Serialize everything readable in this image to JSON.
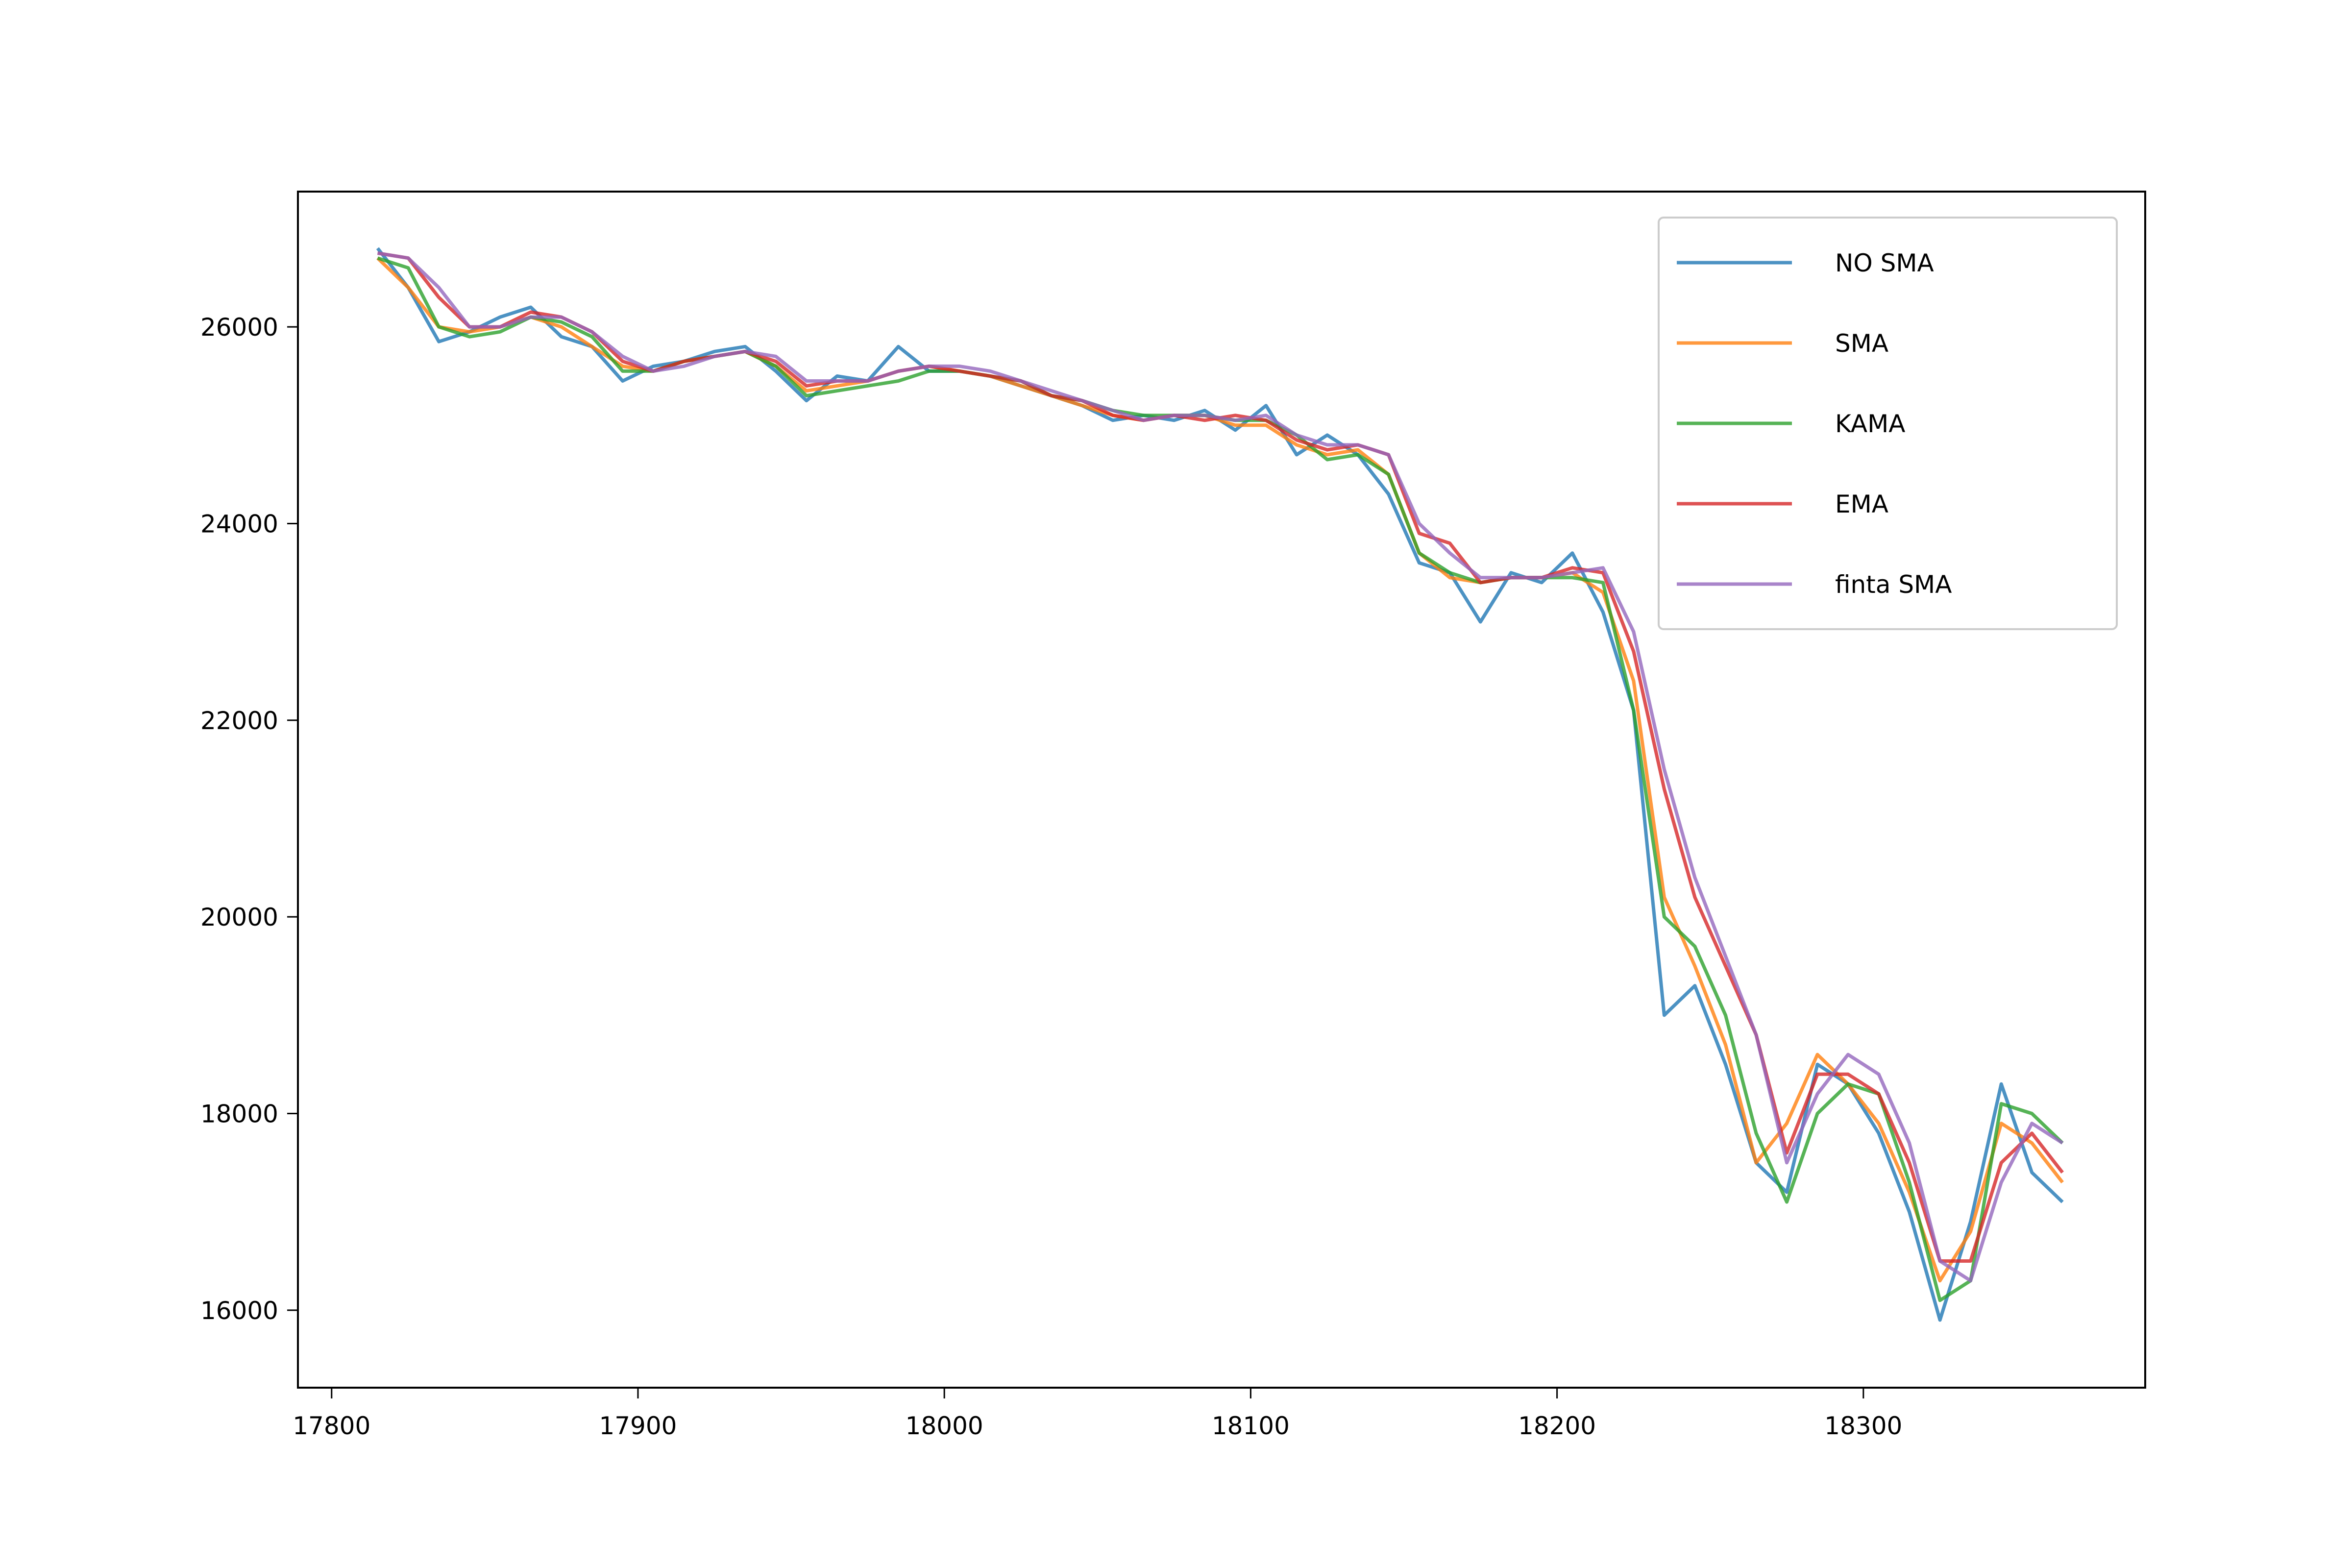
{
  "chart_data": {
    "type": "line",
    "x": [
      17815,
      17825,
      17835,
      17845,
      17855,
      17865,
      17875,
      17885,
      17895,
      17905,
      17915,
      17925,
      17935,
      17945,
      17955,
      17965,
      17975,
      17985,
      17995,
      18005,
      18015,
      18025,
      18035,
      18045,
      18055,
      18065,
      18075,
      18085,
      18095,
      18105,
      18115,
      18125,
      18135,
      18145,
      18155,
      18165,
      18175,
      18185,
      18195,
      18205,
      18215,
      18225,
      18235,
      18245,
      18255,
      18265,
      18275,
      18285,
      18295,
      18305,
      18315,
      18325,
      18335,
      18345,
      18355,
      18365
    ],
    "series": [
      {
        "name": "NO SMA",
        "color": "#1f77b4",
        "values": [
          26800,
          26400,
          25850,
          25950,
          26100,
          26200,
          25900,
          25800,
          25450,
          25600,
          25650,
          25750,
          25800,
          25550,
          25250,
          25500,
          25450,
          25800,
          25550,
          25550,
          25500,
          25400,
          25300,
          25200,
          25050,
          25100,
          25050,
          25150,
          24950,
          25200,
          24700,
          24900,
          24700,
          24300,
          23600,
          23500,
          23000,
          23500,
          23400,
          23700,
          23100,
          22100,
          19000,
          19300,
          18500,
          17500,
          17200,
          18500,
          18300,
          17800,
          17000,
          15900,
          16900,
          18300,
          17400,
          17100
        ]
      },
      {
        "name": "SMA",
        "color": "#ff7f0e",
        "values": [
          26700,
          26400,
          26000,
          25950,
          26000,
          26100,
          26000,
          25800,
          25600,
          25550,
          25650,
          25700,
          25750,
          25600,
          25350,
          25400,
          25450,
          25550,
          25600,
          25550,
          25500,
          25400,
          25300,
          25200,
          25100,
          25050,
          25100,
          25100,
          25000,
          25000,
          24800,
          24700,
          24750,
          24500,
          23700,
          23450,
          23400,
          23450,
          23450,
          23500,
          23300,
          22400,
          20200,
          19500,
          18700,
          17500,
          17900,
          18600,
          18300,
          17900,
          17200,
          16300,
          16800,
          17900,
          17700,
          17300
        ]
      },
      {
        "name": "KAMA",
        "color": "#2ca02c",
        "values": [
          26700,
          26600,
          26000,
          25900,
          25950,
          26100,
          26050,
          25900,
          25550,
          25550,
          25650,
          25700,
          25750,
          25600,
          25300,
          25350,
          25400,
          25450,
          25550,
          25550,
          25500,
          25450,
          25300,
          25250,
          25150,
          25100,
          25100,
          25100,
          25050,
          25050,
          24900,
          24650,
          24700,
          24500,
          23700,
          23500,
          23400,
          23450,
          23450,
          23450,
          23400,
          22100,
          20000,
          19700,
          19000,
          17800,
          17100,
          18000,
          18300,
          18200,
          17300,
          16100,
          16300,
          18100,
          18000,
          17700
        ]
      },
      {
        "name": "EMA",
        "color": "#d62728",
        "values": [
          26750,
          26700,
          26300,
          26000,
          26000,
          26150,
          26100,
          25950,
          25650,
          25550,
          25650,
          25700,
          25750,
          25650,
          25400,
          25450,
          25450,
          25550,
          25600,
          25550,
          25500,
          25450,
          25300,
          25250,
          25100,
          25050,
          25100,
          25050,
          25100,
          25050,
          24850,
          24750,
          24800,
          24700,
          23900,
          23800,
          23400,
          23450,
          23450,
          23550,
          23500,
          22700,
          21300,
          20200,
          19500,
          18800,
          17600,
          18400,
          18400,
          18200,
          17500,
          16500,
          16500,
          17500,
          17800,
          17400
        ]
      },
      {
        "name": "finta SMA",
        "color": "#9467bd",
        "values": [
          26750,
          26700,
          26400,
          26000,
          26000,
          26100,
          26100,
          25950,
          25700,
          25550,
          25600,
          25700,
          25750,
          25700,
          25450,
          25450,
          25450,
          25550,
          25600,
          25600,
          25550,
          25450,
          25350,
          25250,
          25150,
          25050,
          25100,
          25100,
          25050,
          25100,
          24900,
          24800,
          24800,
          24700,
          24000,
          23700,
          23450,
          23450,
          23450,
          23500,
          23550,
          22900,
          21500,
          20400,
          19600,
          18800,
          17500,
          18200,
          18600,
          18400,
          17700,
          16500,
          16300,
          17300,
          17900,
          17700
        ]
      }
    ],
    "xlim": [
      17789,
      18392
    ],
    "ylim": [
      15212,
      27376
    ],
    "xticks": [
      17800,
      17900,
      18000,
      18100,
      18200,
      18300
    ],
    "yticks": [
      16000,
      18000,
      20000,
      22000,
      24000,
      26000
    ],
    "grid": false,
    "legend": "upper right"
  }
}
